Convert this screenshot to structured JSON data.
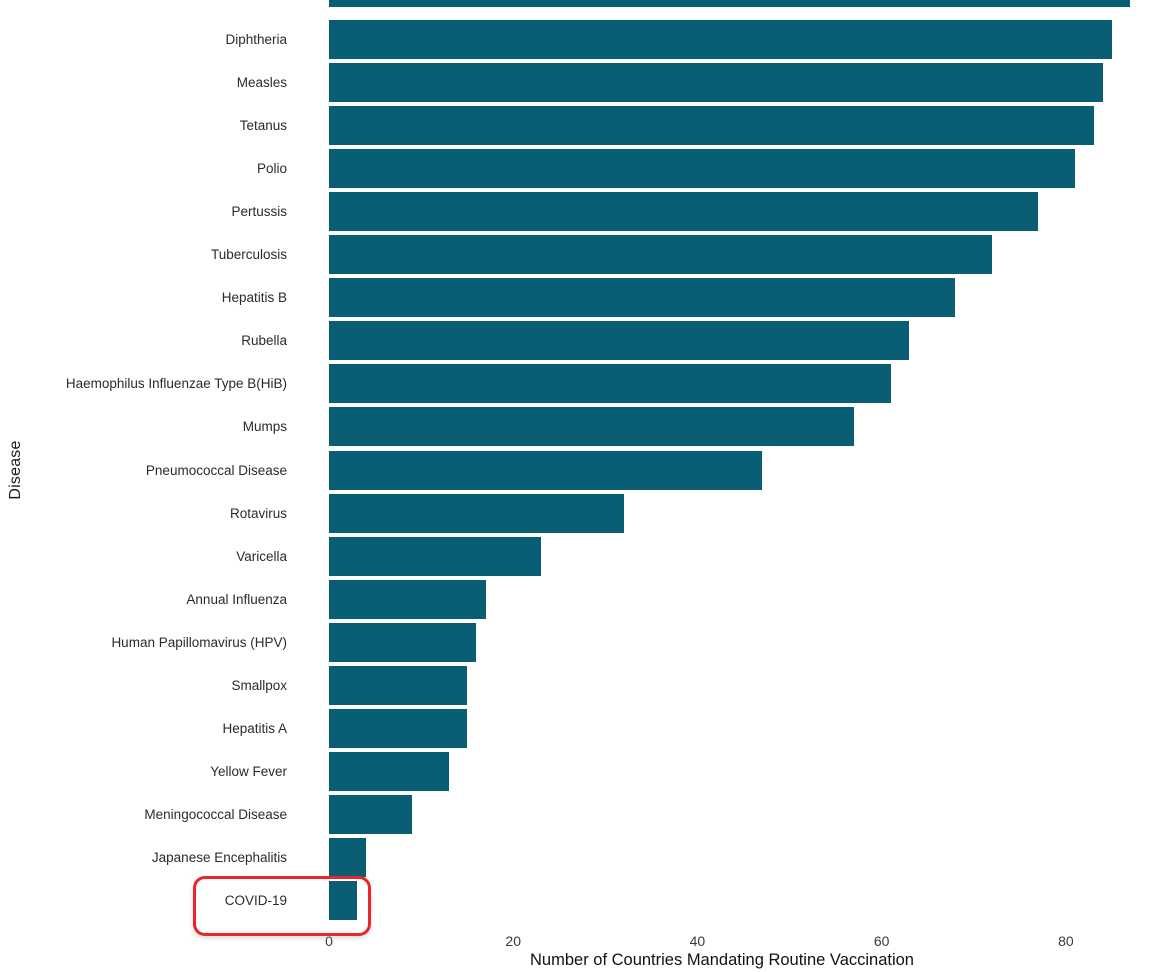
{
  "chart_data": {
    "type": "bar",
    "orientation": "horizontal",
    "title": "",
    "xlabel": "Number of Countries Mandating Routine Vaccination",
    "ylabel": "Disease",
    "categories": [
      "Diphtheria",
      "Measles",
      "Tetanus",
      "Polio",
      "Pertussis",
      "Tuberculosis",
      "Hepatitis B",
      "Rubella",
      "Haemophilus Influenzae Type B(HiB)",
      "Mumps",
      "Pneumococcal Disease",
      "Rotavirus",
      "Varicella",
      "Annual Influenza",
      "Human Papillomavirus (HPV)",
      "Smallpox",
      "Hepatitis A",
      "Yellow Fever",
      "Meningococcal Disease",
      "Japanese Encephalitis",
      "COVID-19"
    ],
    "values": [
      85,
      84,
      83,
      81,
      77,
      72,
      68,
      63,
      61,
      57,
      47,
      32,
      23,
      17,
      16,
      15,
      15,
      13,
      9,
      4,
      3
    ],
    "xticks": [
      0,
      20,
      40,
      60,
      80
    ],
    "xlim": [
      0,
      90
    ],
    "grid": false,
    "legend": "none",
    "background": "#FFFFFF",
    "bar_color": "#0A5E73",
    "text_color": "#2B2B2B",
    "partial_bar_top": {
      "visible": true,
      "value_estimate": 87
    },
    "highlight": {
      "category": "COVID-19",
      "box_color": "#E8252A"
    }
  }
}
